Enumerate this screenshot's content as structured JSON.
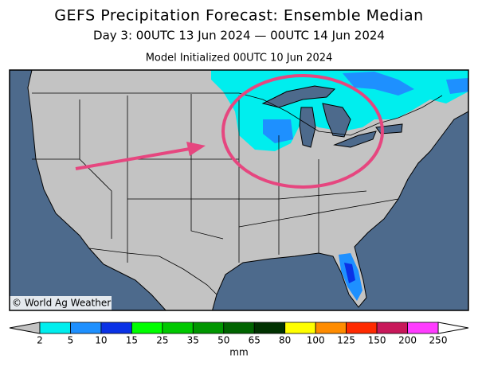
{
  "header": {
    "title": "GEFS Precipitation Forecast: Ensemble Median",
    "subtitle": "Day 3: 00UTC 13 Jun 2024 — 00UTC 14 Jun 2024",
    "init": "Model Initialized 00UTC 10 Jun 2024"
  },
  "map": {
    "credit": "© World Ag Weather"
  },
  "colorbar": {
    "colors": [
      "#00eeee",
      "#1e90ff",
      "#0a32e6",
      "#00ff00",
      "#00c800",
      "#009600",
      "#006400",
      "#003200",
      "#ffff00",
      "#ff8c00",
      "#ff2a00",
      "#c8185a",
      "#ff3cff",
      "#9e50d2"
    ],
    "ticks": [
      2,
      5,
      10,
      15,
      25,
      35,
      50,
      65,
      80,
      100,
      125,
      150,
      200,
      250
    ],
    "unit": "mm"
  }
}
